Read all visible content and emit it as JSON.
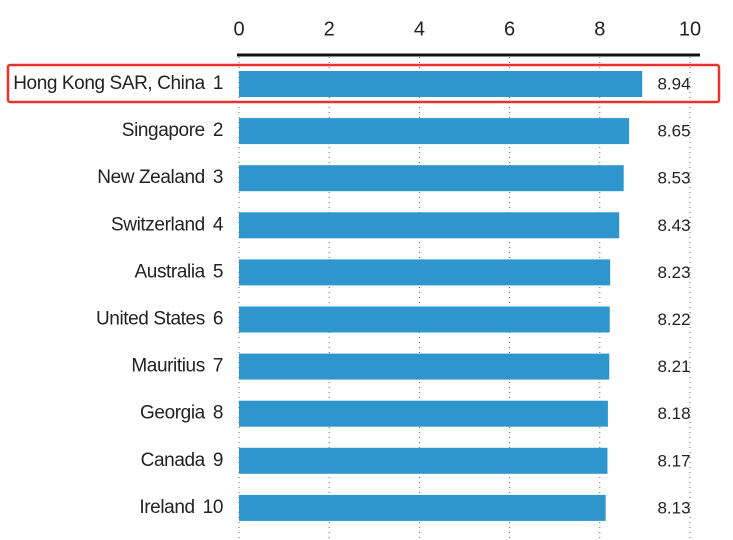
{
  "chart_data": {
    "type": "bar",
    "orientation": "horizontal",
    "categories": [
      "Hong Kong SAR, China",
      "Singapore",
      "New Zealand",
      "Switzerland",
      "Australia",
      "United States",
      "Mauritius",
      "Georgia",
      "Canada",
      "Ireland"
    ],
    "ranks": [
      1,
      2,
      3,
      4,
      5,
      6,
      7,
      8,
      9,
      10
    ],
    "values": [
      8.94,
      8.65,
      8.53,
      8.43,
      8.23,
      8.22,
      8.21,
      8.18,
      8.17,
      8.13
    ],
    "color": "#2e96cc",
    "xlim": [
      0,
      10
    ],
    "xticks": [
      0,
      2,
      4,
      6,
      8,
      10
    ],
    "grid": true
  }
}
